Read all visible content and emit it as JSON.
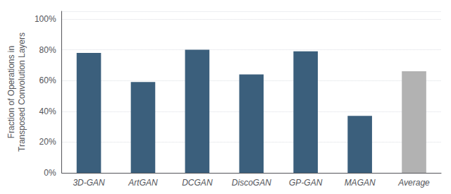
{
  "chart_data": {
    "type": "bar",
    "categories": [
      "3D-GAN",
      "ArtGAN",
      "DCGAN",
      "DiscoGAN",
      "GP-GAN",
      "MAGAN",
      "Average"
    ],
    "values": [
      0.78,
      0.59,
      0.8,
      0.64,
      0.79,
      0.37,
      0.66
    ],
    "colors": [
      "#3b5f7c",
      "#3b5f7c",
      "#3b5f7c",
      "#3b5f7c",
      "#3b5f7c",
      "#3b5f7c",
      "#b2b2b2"
    ],
    "ylabel": "Fraction of Operations in\nTransposed Convolution Layers",
    "ylim": [
      0,
      1.05
    ],
    "yticks": [
      {
        "value": 0.0,
        "label": "0%"
      },
      {
        "value": 0.2,
        "label": "20%"
      },
      {
        "value": 0.4,
        "label": "40%"
      },
      {
        "value": 0.6,
        "label": "60%"
      },
      {
        "value": 0.8,
        "label": "80%"
      },
      {
        "value": 1.0,
        "label": "100%"
      }
    ],
    "grid": true
  }
}
